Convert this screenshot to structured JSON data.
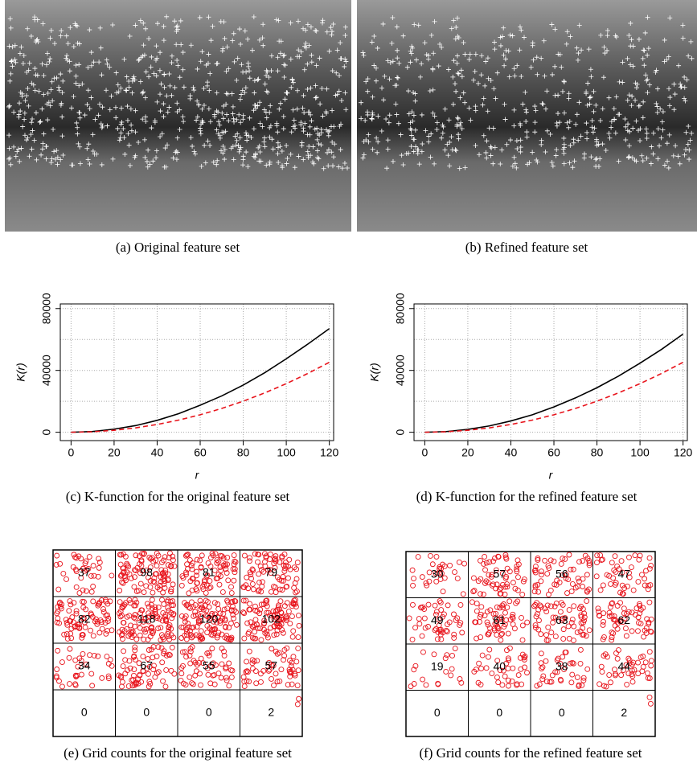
{
  "captions": [
    "(a) Original feature set",
    "(b) Refined feature set",
    "(c) K-function for the original feature set",
    "(d) K-function for the refined feature set",
    "(e) Grid counts for the original feature set",
    "(f) Grid counts for the refined feature set"
  ],
  "chart_data": [
    {
      "type": "line",
      "x_label": "r",
      "y_label": "K(r)",
      "x": [
        0,
        10,
        20,
        30,
        40,
        50,
        60,
        70,
        80,
        90,
        100,
        110,
        120
      ],
      "series": [
        {
          "color": "#000000",
          "style": "solid",
          "values": [
            0,
            500,
            2000,
            4300,
            7700,
            12000,
            17500,
            23500,
            30500,
            38500,
            47500,
            57000,
            67000
          ]
        },
        {
          "color": "#e8141c",
          "style": "dashed",
          "values": [
            0,
            314,
            1257,
            2827,
            5027,
            7854,
            11310,
            15394,
            20106,
            25447,
            31416,
            38013,
            45239
          ]
        }
      ],
      "xlim": [
        -5,
        122
      ],
      "ylim": [
        -5400,
        83000
      ],
      "xticks": [
        0,
        20,
        40,
        60,
        80,
        100,
        120
      ],
      "yticks": [
        0,
        40000,
        80000
      ],
      "ygrid": [
        0,
        20000,
        40000,
        60000,
        80000
      ],
      "grid": true
    },
    {
      "type": "line",
      "x_label": "r",
      "y_label": "K(r)",
      "x": [
        0,
        10,
        20,
        30,
        40,
        50,
        60,
        70,
        80,
        90,
        100,
        110,
        120
      ],
      "series": [
        {
          "color": "#000000",
          "style": "solid",
          "values": [
            0,
            450,
            1850,
            4100,
            7300,
            11300,
            16400,
            22200,
            28800,
            36300,
            44700,
            53600,
            63500
          ]
        },
        {
          "color": "#e8141c",
          "style": "dashed",
          "values": [
            0,
            314,
            1257,
            2827,
            5027,
            7854,
            11310,
            15394,
            20106,
            25447,
            31416,
            38013,
            45239
          ]
        }
      ],
      "xlim": [
        -5,
        122
      ],
      "ylim": [
        -5400,
        83000
      ],
      "xticks": [
        0,
        20,
        40,
        60,
        80,
        100,
        120
      ],
      "yticks": [
        0,
        40000,
        80000
      ],
      "ygrid": [
        0,
        20000,
        40000,
        60000,
        80000
      ],
      "grid": true
    }
  ],
  "grids": [
    {
      "counts": [
        [
          37,
          98,
          81,
          79
        ],
        [
          82,
          118,
          120,
          102
        ],
        [
          34,
          67,
          55,
          57
        ],
        [
          0,
          0,
          0,
          2
        ]
      ]
    },
    {
      "counts": [
        [
          30,
          57,
          56,
          47
        ],
        [
          49,
          61,
          63,
          62
        ],
        [
          19,
          40,
          38,
          44
        ],
        [
          0,
          0,
          0,
          2
        ]
      ]
    }
  ]
}
